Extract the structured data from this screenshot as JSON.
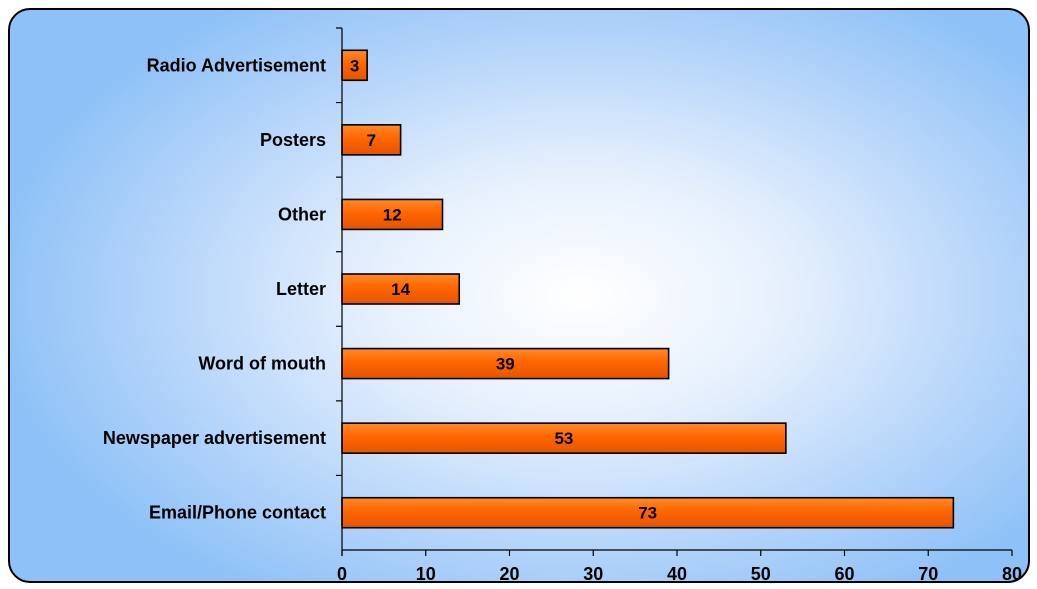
{
  "chart_data": {
    "type": "bar",
    "orientation": "horizontal",
    "categories": [
      "Radio Advertisement",
      "Posters",
      "Other",
      "Letter",
      "Word of mouth",
      "Newspaper advertisement",
      "Email/Phone contact"
    ],
    "values": [
      3,
      7,
      12,
      14,
      39,
      53,
      73
    ],
    "data_labels": [
      "3",
      "7",
      "12",
      "14",
      "39",
      "53",
      "73"
    ],
    "xlim": [
      0,
      80
    ],
    "x_ticks": [
      "0",
      "10",
      "20",
      "30",
      "40",
      "50",
      "60",
      "70",
      "80"
    ],
    "grid": false,
    "legend": "none",
    "bar_color": "#ff6600",
    "bar_edge_color": "#000000",
    "background_gradient": [
      "#ffffff",
      "#8ec1f7"
    ]
  }
}
